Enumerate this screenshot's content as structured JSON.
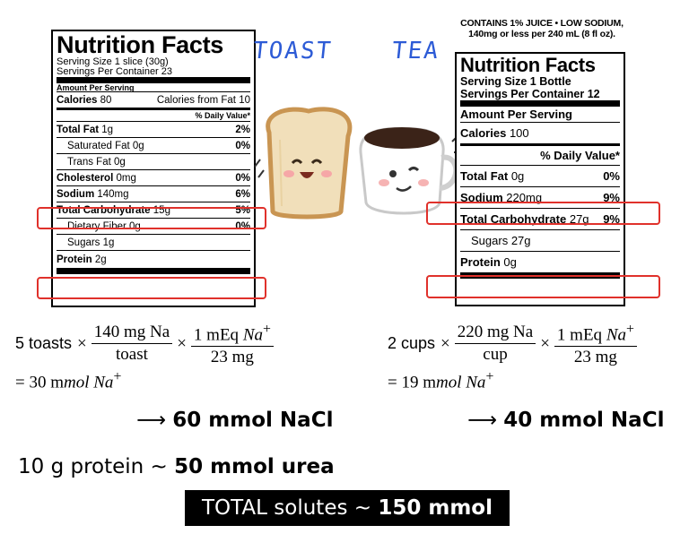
{
  "toast_label": {
    "title": "Nutrition Facts",
    "serving_size": "Serving Size 1 slice (30g)",
    "servings": "Servings Per Container 23",
    "amount_per_serving": "Amount Per Serving",
    "calories_label": "Calories",
    "calories_value": "80",
    "calories_fat": "Calories from Fat 10",
    "dv_header": "% Daily Value*",
    "rows": [
      {
        "name": "Total Fat",
        "amount": "1g",
        "dv": "2%"
      },
      {
        "name": "Saturated Fat",
        "amount": "0g",
        "dv": "0%"
      },
      {
        "name": "Trans Fat",
        "amount": "0g",
        "dv": ""
      },
      {
        "name": "Cholesterol",
        "amount": "0mg",
        "dv": "0%"
      },
      {
        "name": "Sodium",
        "amount": "140mg",
        "dv": "6%"
      },
      {
        "name": "Total Carbohydrate",
        "amount": "15g",
        "dv": "5%"
      },
      {
        "name": "Dietary Fiber",
        "amount": "0g",
        "dv": "0%"
      },
      {
        "name": "Sugars",
        "amount": "1g",
        "dv": ""
      },
      {
        "name": "Protein",
        "amount": "2g",
        "dv": ""
      }
    ]
  },
  "tea_label": {
    "note_line1": "CONTAINS 1% JUICE • LOW SODIUM,",
    "note_line2": "140mg or less per 240 mL (8 fl oz).",
    "title": "Nutrition Facts",
    "serving_size": "Serving Size 1 Bottle",
    "servings": "Servings Per Container 12",
    "amount_per_serving": "Amount Per Serving",
    "calories_label": "Calories",
    "calories_value": "100",
    "dv_header": "% Daily Value*",
    "rows": [
      {
        "name": "Total Fat",
        "amount": "0g",
        "dv": "0%"
      },
      {
        "name": "Sodium",
        "amount": "220mg",
        "dv": "9%"
      },
      {
        "name": "Total Carbohydrate",
        "amount": "27g",
        "dv": "9%"
      },
      {
        "name": "Sugars",
        "amount": "27g",
        "dv": ""
      },
      {
        "name": "Protein",
        "amount": "0g",
        "dv": ""
      }
    ]
  },
  "words": {
    "toast": "TOAST",
    "tea": "TEA"
  },
  "calc_toast": {
    "lhs": "5 toasts",
    "num1": "140 mg Na",
    "den1": "toast",
    "num2_text": "1 mEq ",
    "num2_ion": "Na",
    "den2": "23 mg",
    "result_prefix": "= 30 m",
    "result_unit": "mol Na",
    "arrow_prefix": "⟶ ",
    "arrow_value": "60 mmol NaCl"
  },
  "calc_tea": {
    "lhs": "2 cups",
    "num1": "220 mg Na",
    "den1": "cup",
    "num2_text": "1 mEq ",
    "num2_ion": "Na",
    "den2": "23 mg",
    "result_prefix": "= 19 m",
    "result_unit": "mol Na",
    "arrow_prefix": "⟶ ",
    "arrow_value": "40 mmol NaCl"
  },
  "protein_line": {
    "prefix": "10 g protein ~ ",
    "value": "50 mmol urea"
  },
  "total_line": {
    "prefix": "TOTAL solutes ~ ",
    "value": "150 mmol"
  },
  "colors": {
    "highlight": "#e0312b",
    "word": "#2d5bd6"
  }
}
